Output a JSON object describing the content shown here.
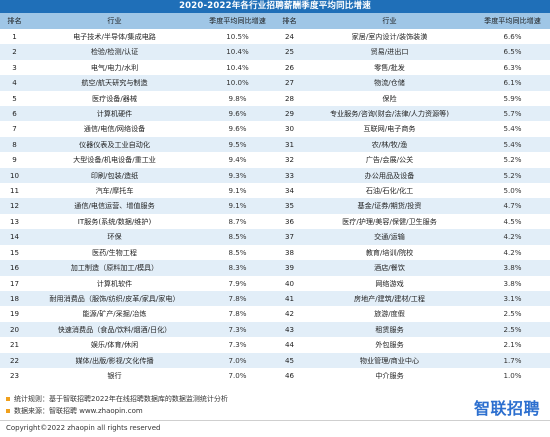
{
  "title": "2020-2022年各行业招聘薪酬季度平均同比增速",
  "headers": {
    "rank": "排名",
    "industry": "行业",
    "growth": "季度平均同比增速"
  },
  "left_rows": [
    {
      "rank": "1",
      "industry": "电子技术/半导体/集成电路",
      "growth": "10.5%"
    },
    {
      "rank": "2",
      "industry": "检验/检测/认证",
      "growth": "10.4%"
    },
    {
      "rank": "3",
      "industry": "电气/电力/水利",
      "growth": "10.4%"
    },
    {
      "rank": "4",
      "industry": "航空/航天研究与制造",
      "growth": "10.0%"
    },
    {
      "rank": "5",
      "industry": "医疗设备/器械",
      "growth": "9.8%"
    },
    {
      "rank": "6",
      "industry": "计算机硬件",
      "growth": "9.6%"
    },
    {
      "rank": "7",
      "industry": "通信/电信/网络设备",
      "growth": "9.6%"
    },
    {
      "rank": "8",
      "industry": "仪器仪表及工业自动化",
      "growth": "9.5%"
    },
    {
      "rank": "9",
      "industry": "大型设备/机电设备/重工业",
      "growth": "9.4%"
    },
    {
      "rank": "10",
      "industry": "印刷/包装/造纸",
      "growth": "9.3%"
    },
    {
      "rank": "11",
      "industry": "汽车/摩托车",
      "growth": "9.1%"
    },
    {
      "rank": "12",
      "industry": "通信/电信运营、增值服务",
      "growth": "9.1%"
    },
    {
      "rank": "13",
      "industry": "IT服务(系统/数据/维护)",
      "growth": "8.7%"
    },
    {
      "rank": "14",
      "industry": "环保",
      "growth": "8.5%"
    },
    {
      "rank": "15",
      "industry": "医药/生物工程",
      "growth": "8.5%"
    },
    {
      "rank": "16",
      "industry": "加工制造（原料加工/模具）",
      "growth": "8.3%"
    },
    {
      "rank": "17",
      "industry": "计算机软件",
      "growth": "7.9%"
    },
    {
      "rank": "18",
      "industry": "耐用消费品（服饰/纺织/皮革/家具/家电）",
      "growth": "7.8%"
    },
    {
      "rank": "19",
      "industry": "能源/矿产/采掘/冶炼",
      "growth": "7.8%"
    },
    {
      "rank": "20",
      "industry": "快速消费品（食品/饮料/烟酒/日化）",
      "growth": "7.3%"
    },
    {
      "rank": "21",
      "industry": "娱乐/体育/休闲",
      "growth": "7.3%"
    },
    {
      "rank": "22",
      "industry": "媒体/出版/影视/文化传播",
      "growth": "7.0%"
    },
    {
      "rank": "23",
      "industry": "银行",
      "growth": "7.0%"
    }
  ],
  "right_rows": [
    {
      "rank": "24",
      "industry": "家居/室内设计/装饰装潢",
      "growth": "6.6%"
    },
    {
      "rank": "25",
      "industry": "贸易/进出口",
      "growth": "6.5%"
    },
    {
      "rank": "26",
      "industry": "零售/批发",
      "growth": "6.3%"
    },
    {
      "rank": "27",
      "industry": "物流/仓储",
      "growth": "6.1%"
    },
    {
      "rank": "28",
      "industry": "保险",
      "growth": "5.9%"
    },
    {
      "rank": "29",
      "industry": "专业服务/咨询(财会/法律/人力资源等)",
      "growth": "5.7%"
    },
    {
      "rank": "30",
      "industry": "互联网/电子商务",
      "growth": "5.4%"
    },
    {
      "rank": "31",
      "industry": "农/林/牧/渔",
      "growth": "5.4%"
    },
    {
      "rank": "32",
      "industry": "广告/会展/公关",
      "growth": "5.2%"
    },
    {
      "rank": "33",
      "industry": "办公用品及设备",
      "growth": "5.2%"
    },
    {
      "rank": "34",
      "industry": "石油/石化/化工",
      "growth": "5.0%"
    },
    {
      "rank": "35",
      "industry": "基金/证券/期货/投资",
      "growth": "4.7%"
    },
    {
      "rank": "36",
      "industry": "医疗/护理/美容/保健/卫生服务",
      "growth": "4.5%"
    },
    {
      "rank": "37",
      "industry": "交通/运输",
      "growth": "4.2%"
    },
    {
      "rank": "38",
      "industry": "教育/培训/院校",
      "growth": "4.2%"
    },
    {
      "rank": "39",
      "industry": "酒店/餐饮",
      "growth": "3.8%"
    },
    {
      "rank": "40",
      "industry": "网络游戏",
      "growth": "3.8%"
    },
    {
      "rank": "41",
      "industry": "房地产/建筑/建材/工程",
      "growth": "3.1%"
    },
    {
      "rank": "42",
      "industry": "旅游/度假",
      "growth": "2.5%"
    },
    {
      "rank": "43",
      "industry": "租赁服务",
      "growth": "2.5%"
    },
    {
      "rank": "44",
      "industry": "外包服务",
      "growth": "2.1%"
    },
    {
      "rank": "45",
      "industry": "物业管理/商业中心",
      "growth": "1.7%"
    },
    {
      "rank": "46",
      "industry": "中介服务",
      "growth": "1.0%"
    }
  ],
  "footer": {
    "note1": "统计规则：基于智联招聘2022年在线招聘数据库的数据监测统计分析",
    "note2": "数据来源：智联招聘 www.zhaopin.com",
    "copyright": "Copyright©2022 zhaopin all rights reserved",
    "logo": "智联招聘"
  }
}
